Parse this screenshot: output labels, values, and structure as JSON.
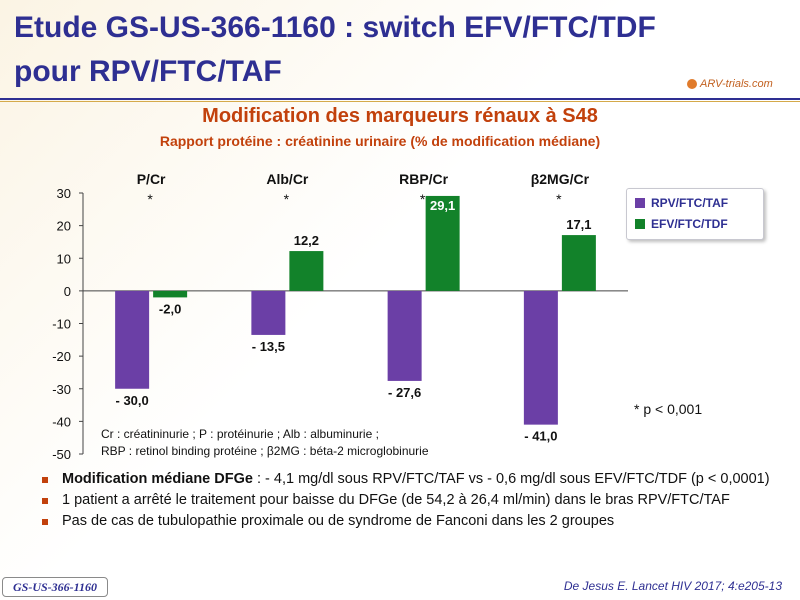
{
  "header": {
    "title": "Etude GS-US-366-1160 : switch EFV/FTC/TDF pour RPV/FTC/TAF",
    "logo_text": "ARV-trials.com"
  },
  "chart_data": {
    "type": "bar",
    "title": "Modification des marqueurs rénaux à S48",
    "subtitle": "Rapport protéine : créatinine urinaire (% de modification médiane)",
    "categories": [
      "P/Cr",
      "Alb/Cr",
      "RBP/Cr",
      "β2MG/Cr"
    ],
    "significance": [
      "*",
      "*",
      "*",
      "*"
    ],
    "series": [
      {
        "name": "RPV/FTC/TAF",
        "color": "#6b3fa6",
        "values": [
          -30.0,
          -13.5,
          -27.6,
          -41.0
        ],
        "labels": [
          "- 30,0",
          "- 13,5",
          "-  27,6",
          "- 41,0"
        ]
      },
      {
        "name": "EFV/FTC/TDF",
        "color": "#12822a",
        "values": [
          -2.0,
          12.2,
          29.1,
          17.1
        ],
        "labels": [
          "-2,0",
          "12,2",
          "29,1",
          "17,1"
        ]
      }
    ],
    "ylim": [
      -50,
      30
    ],
    "yticks": [
      30,
      20,
      10,
      0,
      -10,
      -20,
      -30,
      -40,
      -50
    ],
    "legend_position": "top-right",
    "grid": false
  },
  "notes": {
    "pvalue": "* p < 0,001",
    "abbrev_line1": "Cr : créatininurie ; P : protéinurie ; Alb : albuminurie ;",
    "abbrev_line2": "RBP : retinol binding protéine ; β2MG : béta-2 microglobinurie"
  },
  "bullets": [
    {
      "bold": "Modification médiane DFGe",
      "text": " : - 4,1 mg/dl sous RPV/FTC/TAF vs - 0,6 mg/dl sous EFV/FTC/TDF (p < 0,0001)"
    },
    {
      "bold": "",
      "text": "1 patient a arrêté le traitement pour baisse du DFGe (de 54,2 à 26,4 ml/min)  dans le bras RPV/FTC/TAF"
    },
    {
      "bold": "",
      "text": "Pas de cas de tubulopathie  proximale  ou de syndrome de Fanconi dans les 2 groupes"
    }
  ],
  "footer": {
    "study_badge": "GS-US-366-1160",
    "citation": "De Jesus E. Lancet HIV 2017; 4:e205-13"
  },
  "colors": {
    "title_blue": "#2e2f92",
    "accent_orange": "#c2410c",
    "series1": "#6b3fa6",
    "series2": "#12822a"
  }
}
